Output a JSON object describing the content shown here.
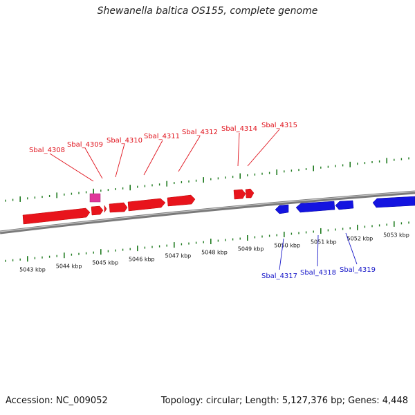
{
  "title": "Shewanella baltica OS155, complete genome",
  "footer": {
    "accession": "Accession: NC_009052",
    "summary": "Topology: circular; Length: 5,127,376 bp; Genes: 4,448"
  },
  "colors": {
    "forward_gene": "#e8141c",
    "reverse_gene": "#1414e0",
    "highlight_gene": "#e0389a",
    "tick_marks": "#1e7a1e",
    "backbone": "#8a8a8a"
  },
  "scale": {
    "tick_labels": [
      "5043 kbp",
      "5044 kbp",
      "5045 kbp",
      "5046 kbp",
      "5047 kbp",
      "5048 kbp",
      "5049 kbp",
      "5050 kbp",
      "5051 kbp",
      "5052 kbp",
      "5053 kbp"
    ]
  },
  "forward_labels": [
    "Sbal_4308",
    "Sbal_4309",
    "Sbal_4310",
    "Sbal_4311",
    "Sbal_4312",
    "Sbal_4314",
    "Sbal_4315"
  ],
  "reverse_labels": [
    "Sbal_4317",
    "Sbal_4318",
    "Sbal_4319"
  ]
}
